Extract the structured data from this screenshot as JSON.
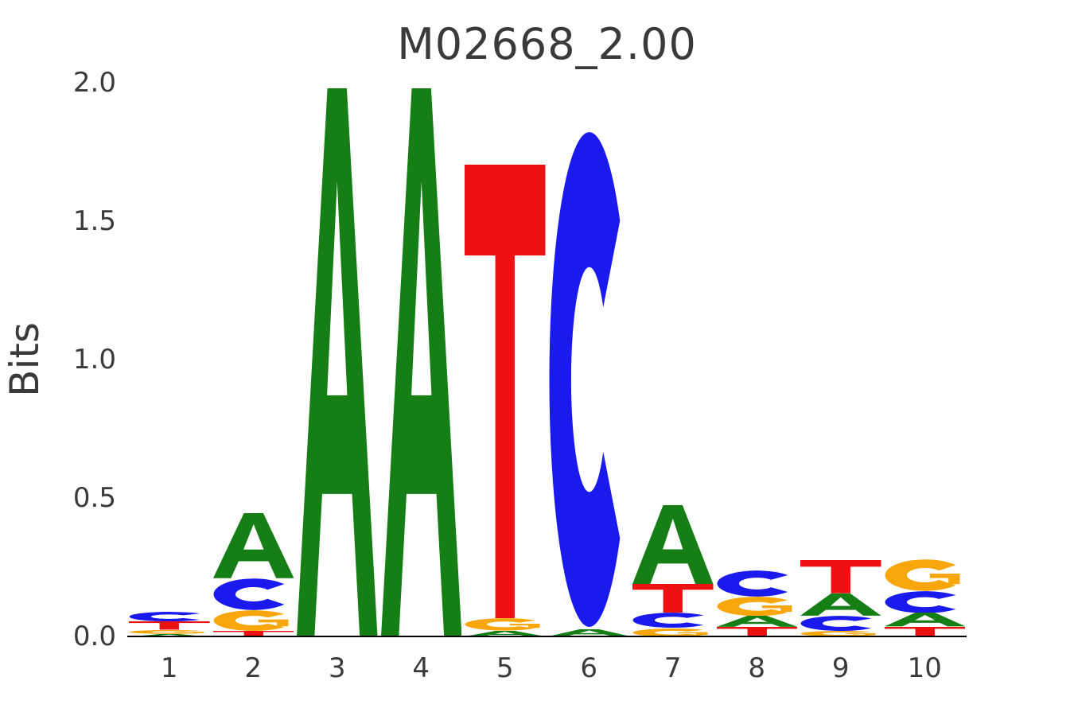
{
  "chart_data": {
    "type": "sequence_logo",
    "title": "M02668_2.00",
    "ylabel": "Bits",
    "xlabel": "",
    "ylim": [
      0.0,
      2.0
    ],
    "yticks": [
      "0.0",
      "0.5",
      "1.0",
      "1.5",
      "2.0"
    ],
    "ytick_values": [
      0.0,
      0.5,
      1.0,
      1.5,
      2.0
    ],
    "grid": false,
    "legend": "none",
    "positions": [
      "1",
      "2",
      "3",
      "4",
      "5",
      "6",
      "7",
      "8",
      "9",
      "10"
    ],
    "colors": {
      "A": "#157e15",
      "C": "#1a1aee",
      "G": "#f9a60a",
      "T": "#ee1111"
    },
    "stacks_note": "letters listed bottom-to-top with height in bits",
    "stacks": [
      [
        {
          "letter": "A",
          "bits": 0.01
        },
        {
          "letter": "G",
          "bits": 0.014
        },
        {
          "letter": "T",
          "bits": 0.03
        },
        {
          "letter": "C",
          "bits": 0.035
        }
      ],
      [
        {
          "letter": "T",
          "bits": 0.02
        },
        {
          "letter": "G",
          "bits": 0.075
        },
        {
          "letter": "C",
          "bits": 0.115
        },
        {
          "letter": "A",
          "bits": 0.235
        }
      ],
      [
        {
          "letter": "A",
          "bits": 1.98
        }
      ],
      [
        {
          "letter": "A",
          "bits": 1.98
        }
      ],
      [
        {
          "letter": "A",
          "bits": 0.02
        },
        {
          "letter": "G",
          "bits": 0.045
        },
        {
          "letter": "T",
          "bits": 1.64
        }
      ],
      [
        {
          "letter": "A",
          "bits": 0.025
        },
        {
          "letter": "C",
          "bits": 1.805
        }
      ],
      [
        {
          "letter": "G",
          "bits": 0.03
        },
        {
          "letter": "C",
          "bits": 0.055
        },
        {
          "letter": "T",
          "bits": 0.105
        },
        {
          "letter": "A",
          "bits": 0.285
        }
      ],
      [
        {
          "letter": "T",
          "bits": 0.035
        },
        {
          "letter": "A",
          "bits": 0.04
        },
        {
          "letter": "G",
          "bits": 0.07
        },
        {
          "letter": "C",
          "bits": 0.095
        }
      ],
      [
        {
          "letter": "G",
          "bits": 0.02
        },
        {
          "letter": "C",
          "bits": 0.055
        },
        {
          "letter": "A",
          "bits": 0.08
        },
        {
          "letter": "T",
          "bits": 0.12
        }
      ],
      [
        {
          "letter": "T",
          "bits": 0.035
        },
        {
          "letter": "A",
          "bits": 0.05
        },
        {
          "letter": "C",
          "bits": 0.08
        },
        {
          "letter": "G",
          "bits": 0.115
        }
      ]
    ]
  }
}
